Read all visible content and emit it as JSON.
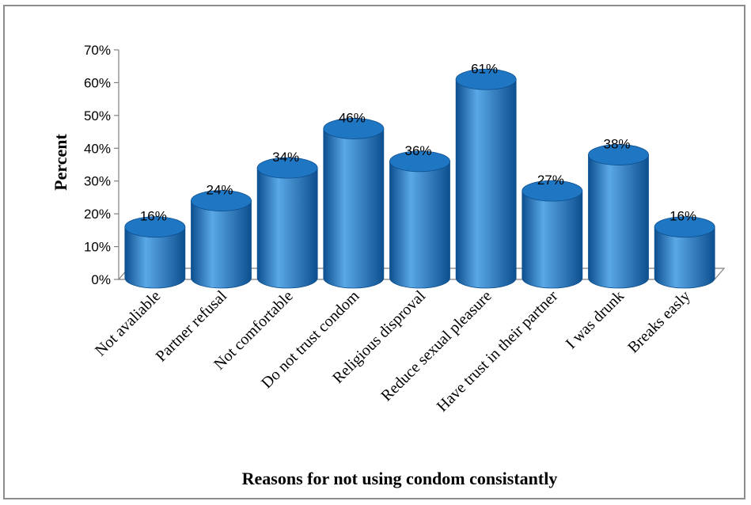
{
  "chart_data": {
    "type": "bar",
    "categories": [
      "Not avaliable",
      "Partner refusal",
      "Not comfortable",
      "Do not trust condom",
      "Religious disproval",
      "Reduce sexual pleasure",
      "Have trust in their partner",
      "I was drunk",
      "Breaks easly"
    ],
    "values": [
      16,
      24,
      34,
      46,
      36,
      61,
      27,
      38,
      16
    ],
    "data_labels": [
      "16%",
      "24%",
      "34%",
      "46%",
      "36%",
      "61%",
      "27%",
      "38%",
      "16%"
    ],
    "yticks": [
      "0%",
      "10%",
      "20%",
      "30%",
      "40%",
      "50%",
      "60%",
      "70%"
    ],
    "ylim": [
      0,
      70
    ],
    "xlabel": "Reasons for not using  condom consistantly",
    "ylabel": "Percent",
    "bar_color": "#1f77c4",
    "bar_color_dark": "#0d4f8f",
    "bar_color_light": "#5aa8e6",
    "grid": false
  }
}
